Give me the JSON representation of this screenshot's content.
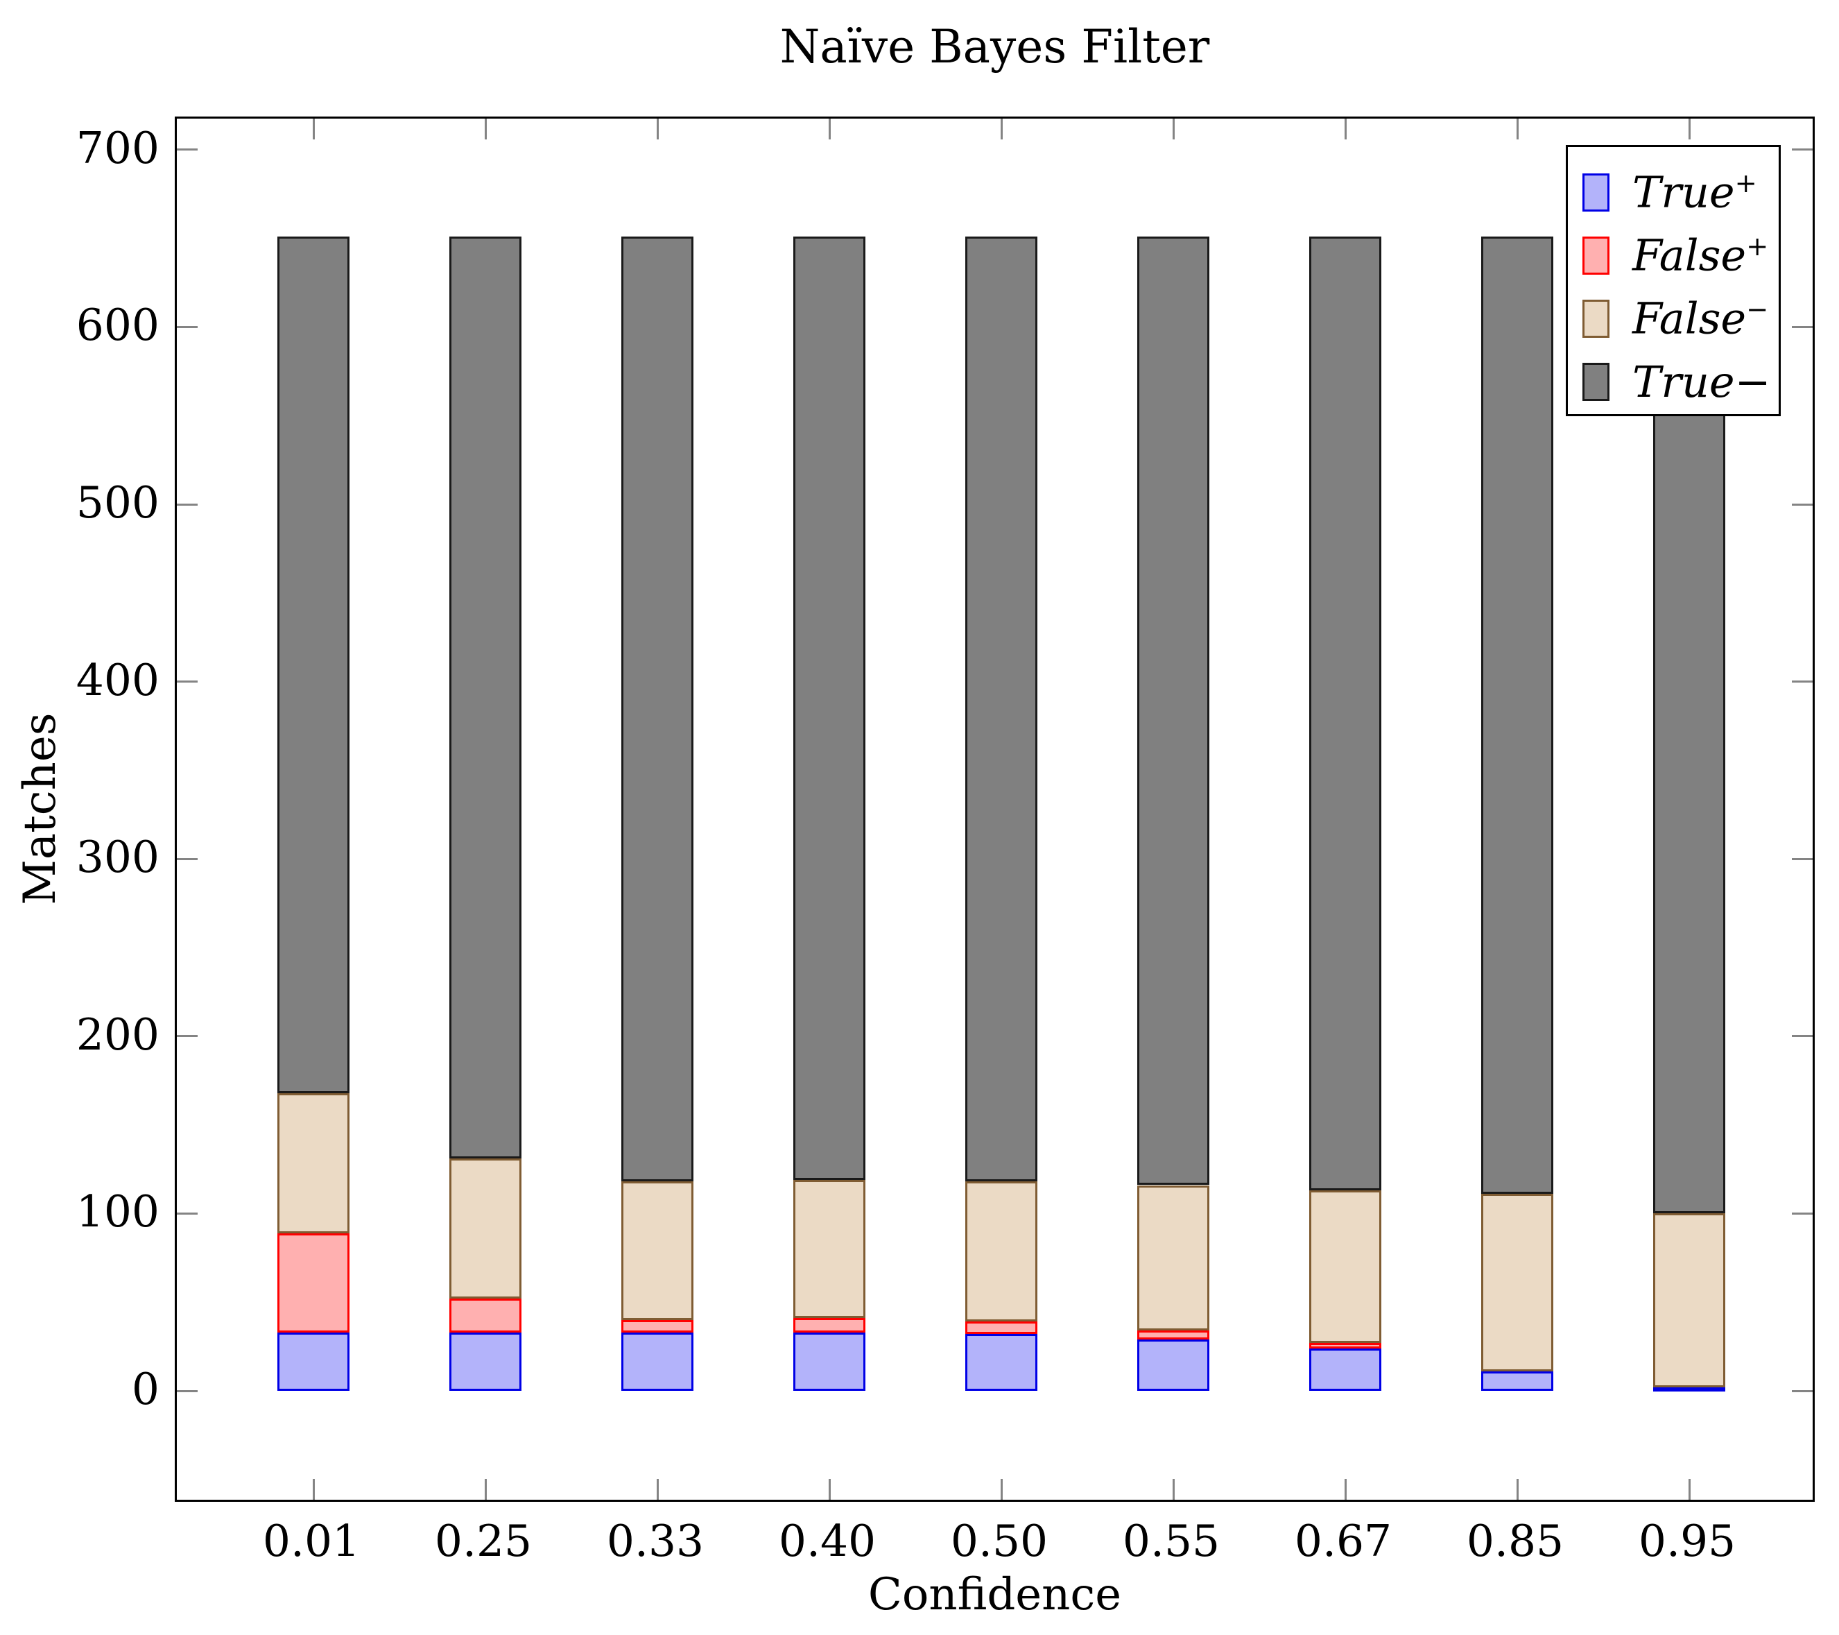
{
  "title": "Naïve Bayes Filter",
  "x_axis": {
    "label": "Confidence"
  },
  "y_axis": {
    "label": "Matches"
  },
  "legend": {
    "items": [
      {
        "name": "True",
        "sign": "+",
        "raised": true
      },
      {
        "name": "False",
        "sign": "+",
        "raised": true
      },
      {
        "name": "False",
        "sign": "−",
        "raised": true
      },
      {
        "name": "True",
        "sign": "−",
        "raised": false
      }
    ]
  },
  "chart_data": {
    "type": "bar",
    "stacked": true,
    "title": "Naïve Bayes Filter",
    "xlabel": "Confidence",
    "ylabel": "Matches",
    "categories": [
      "0.01",
      "0.25",
      "0.33",
      "0.40",
      "0.50",
      "0.55",
      "0.67",
      "0.85",
      "0.95"
    ],
    "y_ticks": [
      0,
      100,
      200,
      300,
      400,
      500,
      600,
      700
    ],
    "ylim": [
      -65,
      715
    ],
    "grid": false,
    "legend_position": "top-right",
    "bar_total": 651,
    "series": [
      {
        "name": "True+",
        "key": "true_pos",
        "fill": "#B3B3FA",
        "stroke": "#0000E6",
        "values": [
          33,
          33,
          33,
          33,
          32,
          29,
          24,
          11,
          2
        ]
      },
      {
        "name": "False+",
        "key": "false_pos",
        "fill": "#FFB0B0",
        "stroke": "#FF0000",
        "values": [
          56,
          19,
          7,
          8,
          7,
          5,
          3,
          0,
          0
        ]
      },
      {
        "name": "False-",
        "key": "false_neg",
        "fill": "#EBDAC5",
        "stroke": "#7F5C33",
        "values": [
          79,
          79,
          78,
          78,
          79,
          82,
          86,
          100,
          98
        ]
      },
      {
        "name": "True-",
        "key": "true_neg",
        "fill": "#808080",
        "stroke": "#1A1A1A",
        "values": [
          483,
          520,
          533,
          532,
          533,
          535,
          538,
          540,
          551
        ]
      }
    ]
  }
}
